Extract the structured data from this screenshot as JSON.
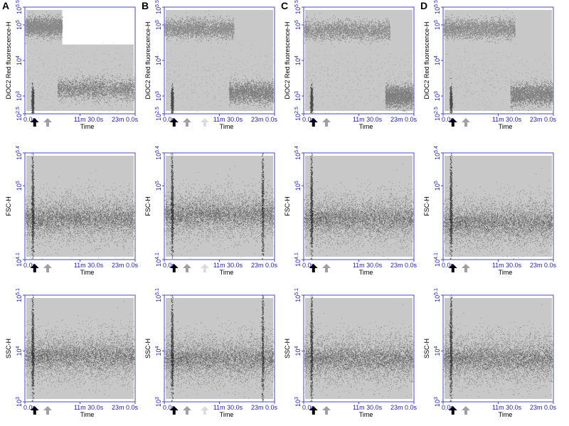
{
  "panels": [
    "A",
    "B",
    "C",
    "D"
  ],
  "colors": {
    "frame": "#4444cc",
    "tick_text": "#2222aa",
    "background_events": "#c8c8c8",
    "dense_events": "#111111",
    "arrow_black": "#000000",
    "arrow_gray": "#a0a0a0",
    "arrow_light": "#dcdcdc"
  },
  "chart_data": [
    {
      "type": "scatter",
      "rows": "DiOC2 Red fluorescence-H vs Time",
      "xlabel": "Time",
      "xticks": [
        "0.0s",
        "11m 30.0s",
        "23m 0.0s"
      ],
      "ylabel": "DiOC2 Red fluorescence-H",
      "yticks": [
        {
          "base": "10",
          "exp": "2.5"
        },
        {
          "base": "10",
          "exp": "3"
        },
        {
          "base": "10",
          "exp": "4"
        },
        {
          "base": "10",
          "exp": "5"
        },
        {
          "base": "10",
          "exp": "5.5"
        }
      ],
      "ylim_log10": [
        2.5,
        5.5
      ],
      "xlim_minutes": [
        0,
        23
      ],
      "panels": {
        "A": {
          "arrows": [
            "black",
            "gray"
          ],
          "high_band_log10": 4.95,
          "low_band_log10": 3.2
        },
        "B": {
          "arrows": [
            "black",
            "gray",
            "light"
          ],
          "high_band_log10": 4.9,
          "low_band_log10": 3.1
        },
        "C": {
          "arrows": [
            "black",
            "gray"
          ],
          "high_band_log10": 4.85,
          "low_band_log10": 3.0
        },
        "D": {
          "arrows": [
            "black",
            "gray"
          ],
          "high_band_log10": 4.9,
          "low_band_log10": 3.05
        }
      }
    },
    {
      "type": "scatter",
      "rows": "FSC-H vs Time",
      "xlabel": "Time",
      "xticks": [
        "0.0s",
        "11m 30.0s",
        "23m 0.0s"
      ],
      "ylabel": "FSC-H",
      "yticks": [
        {
          "base": "10",
          "exp": "4.1"
        },
        {
          "base": "10",
          "exp": "5"
        },
        {
          "base": "10",
          "exp": "5.4"
        }
      ],
      "ylim_log10": [
        4.1,
        5.4
      ],
      "xlim_minutes": [
        0,
        23
      ],
      "panels": {
        "A": {
          "arrows": [
            "black",
            "gray"
          ],
          "band_log10": 4.6
        },
        "B": {
          "arrows": [
            "black",
            "gray",
            "light"
          ],
          "band_log10": 4.65
        },
        "C": {
          "arrows": [
            "black",
            "gray"
          ],
          "band_log10": 4.6
        },
        "D": {
          "arrows": [
            "black",
            "gray"
          ],
          "band_log10": 4.55
        }
      }
    },
    {
      "type": "scatter",
      "rows": "SSC-H vs Time",
      "xlabel": "Time",
      "xticks": [
        "0.0s",
        "11m 30.0s",
        "23m 0.0s"
      ],
      "ylabel": "SSC-H",
      "yticks": [
        {
          "base": "10",
          "exp": "3"
        },
        {
          "base": "10",
          "exp": "4"
        },
        {
          "base": "10",
          "exp": "5.1"
        }
      ],
      "ylim_log10": [
        3,
        5.1
      ],
      "xlim_minutes": [
        0,
        23
      ],
      "panels": {
        "A": {
          "arrows": [
            "black",
            "gray"
          ],
          "band_log10": 3.9
        },
        "B": {
          "arrows": [
            "black",
            "gray",
            "light"
          ],
          "band_log10": 3.85
        },
        "C": {
          "arrows": [
            "black",
            "gray"
          ],
          "band_log10": 3.85
        },
        "D": {
          "arrows": [
            "black",
            "gray"
          ],
          "band_log10": 3.85
        }
      }
    }
  ]
}
